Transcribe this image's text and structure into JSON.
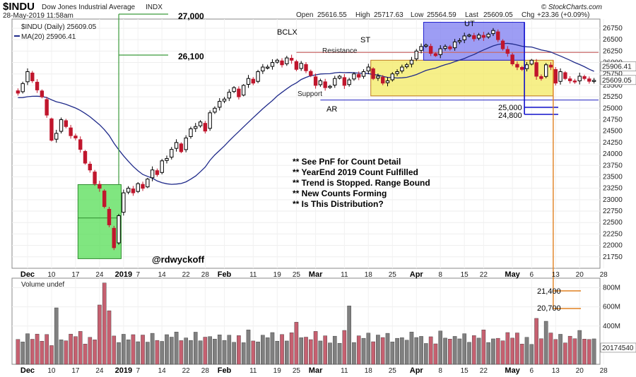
{
  "chart_data": {
    "type": "candlestick",
    "title": "$INDU",
    "subtitle": "Dow Jones Industrial Average",
    "exchange": "INDX",
    "date_line": "28-May-2019 11:58am",
    "watermark": "© StockCharts.com",
    "quote": {
      "open_label": "Open",
      "open": "25616.55",
      "high_label": "High",
      "high": "25717.63",
      "low_label": "Low",
      "low": "25564.59",
      "last_label": "Last",
      "last": "25609.05",
      "chg_label": "Chg",
      "chg": "+23.36 (+0.09%)"
    },
    "legend": {
      "series_name": "$INDU (Daily) 25609.05",
      "ma_name": "MA(20) 25906.41"
    },
    "price_axis": {
      "min": 21500,
      "max": 26950,
      "ticks": [
        21750,
        22000,
        22250,
        22500,
        22750,
        23000,
        23250,
        23500,
        23750,
        24000,
        24250,
        24500,
        24750,
        25000,
        25250,
        25500,
        25750,
        26000,
        26250,
        26500,
        26750
      ],
      "tick_labels": [
        "21750",
        "22000",
        "22250",
        "22500",
        "22750",
        "23000",
        "23250",
        "23500",
        "23750",
        "24000",
        "24250",
        "24500",
        "24750",
        "25000",
        "25250",
        "25500",
        "25750",
        "26000",
        "26250",
        "26500",
        "26750"
      ],
      "last_tag": "25609.05",
      "ma_tag": "25906.41"
    },
    "volume_axis": {
      "label": "Volume undef",
      "min": 0,
      "max": 900,
      "ticks": [
        400,
        600,
        800
      ],
      "tick_labels": [
        "400M",
        "600M",
        "800M"
      ],
      "last_tag": "20174540"
    },
    "x_labels": [
      {
        "i": 2,
        "text": "Dec",
        "bold": true
      },
      {
        "i": 7,
        "text": "10",
        "bold": false
      },
      {
        "i": 12,
        "text": "17",
        "bold": false
      },
      {
        "i": 17,
        "text": "24",
        "bold": false
      },
      {
        "i": 22,
        "text": "2019",
        "bold": true
      },
      {
        "i": 25,
        "text": "7",
        "bold": false
      },
      {
        "i": 30,
        "text": "14",
        "bold": false
      },
      {
        "i": 35,
        "text": "22",
        "bold": false
      },
      {
        "i": 39,
        "text": "28",
        "bold": false
      },
      {
        "i": 43,
        "text": "Feb",
        "bold": true
      },
      {
        "i": 49,
        "text": "11",
        "bold": false
      },
      {
        "i": 54,
        "text": "19",
        "bold": false
      },
      {
        "i": 58,
        "text": "25",
        "bold": false
      },
      {
        "i": 62,
        "text": "Mar",
        "bold": true
      },
      {
        "i": 68,
        "text": "11",
        "bold": false
      },
      {
        "i": 73,
        "text": "18",
        "bold": false
      },
      {
        "i": 78,
        "text": "25",
        "bold": false
      },
      {
        "i": 83,
        "text": "Apr",
        "bold": true
      },
      {
        "i": 88,
        "text": "8",
        "bold": false
      },
      {
        "i": 93,
        "text": "15",
        "bold": false
      },
      {
        "i": 97,
        "text": "22",
        "bold": false
      },
      {
        "i": 103,
        "text": "May",
        "bold": true
      },
      {
        "i": 107,
        "text": "6",
        "bold": false
      },
      {
        "i": 112,
        "text": "13",
        "bold": false
      },
      {
        "i": 117,
        "text": "20",
        "bold": false
      },
      {
        "i": 122,
        "text": "28",
        "bold": false
      }
    ],
    "closes": [
      25330,
      25540,
      25800,
      25600,
      25400,
      25250,
      24850,
      24300,
      24450,
      24750,
      24600,
      24400,
      24350,
      24100,
      23800,
      23650,
      23350,
      23250,
      22850,
      22450,
      21950,
      22650,
      23150,
      23250,
      23150,
      23350,
      23250,
      23450,
      23650,
      23550,
      23850,
      23900,
      24100,
      24250,
      24050,
      24350,
      24550,
      24600,
      24700,
      24500,
      24900,
      25000,
      25150,
      25200,
      25350,
      25450,
      25250,
      25500,
      25650,
      25550,
      25800,
      25900,
      25900,
      26000,
      26050,
      25950,
      26100,
      26050,
      25850,
      25980,
      25820,
      25720,
      25500,
      25600,
      25450,
      25480,
      25650,
      25700,
      25500,
      25620,
      25750,
      25680,
      25800,
      25900,
      25650,
      25700,
      25550,
      25600,
      25750,
      25800,
      25900,
      25950,
      26050,
      26250,
      26350,
      26380,
      26200,
      26150,
      26300,
      26350,
      26300,
      26450,
      26480,
      26580,
      26600,
      26520,
      26600,
      26550,
      26620,
      26700,
      26500,
      26300,
      26200,
      25970,
      25900,
      25850,
      25950,
      26050,
      25700,
      25650,
      25950,
      25900,
      25550,
      25800,
      25650,
      25600,
      25580,
      25700,
      25650,
      25590,
      25609
    ],
    "vol_min": 1,
    "vol_seq": [
      5,
      3,
      8,
      4,
      7,
      2,
      6,
      1,
      9,
      4,
      3,
      7,
      5,
      8,
      2,
      6,
      4,
      9,
      3,
      5
    ],
    "vol_spikes": [
      {
        "i": 8,
        "v": 590
      },
      {
        "i": 17,
        "v": 620
      },
      {
        "i": 18,
        "v": 850
      },
      {
        "i": 19,
        "v": 560
      },
      {
        "i": 58,
        "v": 440
      },
      {
        "i": 69,
        "v": 610
      },
      {
        "i": 108,
        "v": 480
      },
      {
        "i": 110,
        "v": 450
      }
    ],
    "ma_period": 20,
    "ma_warmup": [
      25460,
      25440,
      25410,
      25380,
      25350,
      25330,
      25300,
      25280,
      25250,
      25220,
      25200,
      25170,
      25150,
      25120,
      25100,
      25070,
      25040,
      25010,
      24980
    ]
  },
  "annotations": {
    "wyckoff": {
      "bclx": "BCLX",
      "st": "ST",
      "ut": "UT",
      "resistance": "Resistance",
      "support": "Support",
      "ar": "AR",
      "resistance_level": 26220,
      "support_level": 25180,
      "bclx_anchor_price": 26220,
      "bclx_anchor_index": 58
    },
    "count_targets_up": [
      {
        "label": "27,000",
        "value": 27000
      },
      {
        "label": "26,100",
        "value": 26100
      }
    ],
    "count_targets_down": [
      {
        "label": "25,000",
        "value": 25000
      },
      {
        "label": "24,800",
        "value": 24800
      }
    ],
    "volume_count_targets": [
      {
        "label": "21,400",
        "volume": 800
      },
      {
        "label": "20,700",
        "volume": 625
      }
    ],
    "accumulation_box": {
      "i_start": 13,
      "i_end": 21,
      "price_top": 23330,
      "price_bottom": 21710,
      "midline": 22600
    },
    "range_box": {
      "i_start": 74,
      "i_end": 111,
      "price_top": 26050,
      "price_bottom": 25270
    },
    "distribution_box": {
      "i_start": 85,
      "i_end": 105,
      "price_top": 26880,
      "price_bottom": 26050
    },
    "notes": [
      "** See PnF for Count Detail",
      "** YearEnd 2019 Count Fulfilled",
      "** Trend is Stopped. Range Bound",
      "** New Counts Forming",
      "** Is This Distribution?"
    ],
    "author": "@rdwyckoff"
  },
  "colors": {
    "up": "#000000",
    "down": "#c0162d",
    "volume_up": "#808080",
    "volume_down": "#c66070",
    "ma": "#1f2a8a",
    "resistance": "#c86a6a",
    "support": "#4a4acc",
    "green_box": "#55dd55",
    "yellow_box": "#f3ea62",
    "blue_box": "#7c7cf0",
    "count_green": "#3a9a3a",
    "count_blue": "#1010cc",
    "count_orange": "#e08020"
  }
}
